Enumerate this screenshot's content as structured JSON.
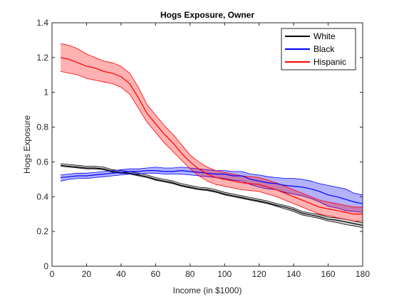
{
  "chart_data": {
    "type": "line",
    "title": "Hogs Exposure, Owner",
    "xlabel": "Income (in $1000)",
    "ylabel": "Hogs Exposure",
    "xlim": [
      0,
      180
    ],
    "ylim": [
      0,
      1.4
    ],
    "xticks": [
      0,
      20,
      40,
      60,
      80,
      100,
      120,
      140,
      160,
      180
    ],
    "yticks": [
      0,
      0.2,
      0.4,
      0.6,
      0.8,
      1,
      1.2,
      1.4
    ],
    "xtick_labels": [
      "0",
      "20",
      "40",
      "60",
      "80",
      "100",
      "120",
      "140",
      "160",
      "180"
    ],
    "ytick_labels": [
      "0",
      "0.2",
      "0.4",
      "0.6",
      "0.8",
      "1",
      "1.2",
      "1.4"
    ],
    "grid": false,
    "legend_position": "top-right",
    "series": [
      {
        "name": "White",
        "color": "#000000",
        "band_color": "#808080",
        "x": [
          5,
          10,
          15,
          20,
          25,
          30,
          35,
          40,
          45,
          50,
          55,
          60,
          65,
          70,
          75,
          80,
          85,
          90,
          95,
          100,
          105,
          110,
          115,
          120,
          125,
          130,
          135,
          140,
          145,
          150,
          155,
          160,
          165,
          170,
          175,
          180
        ],
        "y": [
          0.58,
          0.575,
          0.57,
          0.565,
          0.565,
          0.56,
          0.545,
          0.54,
          0.535,
          0.525,
          0.515,
          0.5,
          0.49,
          0.48,
          0.465,
          0.455,
          0.445,
          0.44,
          0.43,
          0.415,
          0.405,
          0.395,
          0.385,
          0.375,
          0.365,
          0.35,
          0.34,
          0.325,
          0.305,
          0.295,
          0.285,
          0.27,
          0.265,
          0.255,
          0.245,
          0.235
        ],
        "lower": [
          0.575,
          0.57,
          0.565,
          0.56,
          0.56,
          0.555,
          0.54,
          0.535,
          0.53,
          0.52,
          0.51,
          0.495,
          0.485,
          0.475,
          0.46,
          0.45,
          0.44,
          0.435,
          0.425,
          0.41,
          0.4,
          0.39,
          0.38,
          0.37,
          0.36,
          0.345,
          0.33,
          0.315,
          0.295,
          0.285,
          0.275,
          0.26,
          0.252,
          0.24,
          0.232,
          0.222
        ],
        "upper": [
          0.59,
          0.585,
          0.58,
          0.575,
          0.575,
          0.57,
          0.555,
          0.55,
          0.545,
          0.535,
          0.525,
          0.51,
          0.5,
          0.49,
          0.475,
          0.465,
          0.455,
          0.45,
          0.44,
          0.425,
          0.415,
          0.405,
          0.395,
          0.385,
          0.375,
          0.36,
          0.35,
          0.335,
          0.315,
          0.305,
          0.297,
          0.283,
          0.278,
          0.27,
          0.26,
          0.25
        ]
      },
      {
        "name": "Black",
        "color": "#0000ff",
        "band_color": "#0000ff",
        "x": [
          5,
          10,
          15,
          20,
          25,
          30,
          35,
          40,
          45,
          50,
          55,
          60,
          65,
          70,
          75,
          80,
          85,
          90,
          95,
          100,
          105,
          110,
          115,
          120,
          125,
          130,
          135,
          140,
          145,
          150,
          155,
          160,
          165,
          170,
          175,
          180
        ],
        "y": [
          0.51,
          0.515,
          0.52,
          0.52,
          0.525,
          0.53,
          0.535,
          0.54,
          0.545,
          0.545,
          0.55,
          0.55,
          0.545,
          0.545,
          0.55,
          0.545,
          0.54,
          0.535,
          0.53,
          0.53,
          0.52,
          0.52,
          0.5,
          0.49,
          0.48,
          0.475,
          0.465,
          0.46,
          0.455,
          0.445,
          0.43,
          0.41,
          0.4,
          0.385,
          0.37,
          0.36
        ],
        "lower": [
          0.49,
          0.5,
          0.505,
          0.505,
          0.51,
          0.515,
          0.52,
          0.525,
          0.53,
          0.53,
          0.535,
          0.535,
          0.53,
          0.53,
          0.53,
          0.525,
          0.52,
          0.515,
          0.51,
          0.505,
          0.495,
          0.49,
          0.47,
          0.455,
          0.445,
          0.44,
          0.425,
          0.415,
          0.405,
          0.39,
          0.37,
          0.345,
          0.335,
          0.32,
          0.315,
          0.31
        ],
        "upper": [
          0.525,
          0.53,
          0.535,
          0.535,
          0.54,
          0.545,
          0.55,
          0.555,
          0.56,
          0.56,
          0.565,
          0.57,
          0.565,
          0.565,
          0.57,
          0.565,
          0.56,
          0.555,
          0.55,
          0.55,
          0.545,
          0.545,
          0.53,
          0.525,
          0.515,
          0.51,
          0.505,
          0.505,
          0.5,
          0.49,
          0.475,
          0.465,
          0.455,
          0.445,
          0.42,
          0.41
        ]
      },
      {
        "name": "Hispanic",
        "color": "#ff0000",
        "band_color": "#ff0000",
        "x": [
          5,
          10,
          15,
          20,
          25,
          30,
          35,
          40,
          45,
          50,
          55,
          60,
          65,
          70,
          75,
          80,
          85,
          90,
          95,
          100,
          105,
          110,
          115,
          120,
          125,
          130,
          135,
          140,
          145,
          150,
          155,
          160,
          165,
          170,
          175,
          180
        ],
        "y": [
          1.2,
          1.19,
          1.17,
          1.15,
          1.14,
          1.12,
          1.11,
          1.09,
          1.05,
          0.97,
          0.88,
          0.82,
          0.76,
          0.71,
          0.65,
          0.6,
          0.56,
          0.53,
          0.51,
          0.5,
          0.49,
          0.48,
          0.475,
          0.47,
          0.455,
          0.44,
          0.42,
          0.4,
          0.38,
          0.36,
          0.34,
          0.33,
          0.32,
          0.31,
          0.3,
          0.3
        ],
        "lower": [
          1.12,
          1.11,
          1.1,
          1.08,
          1.07,
          1.06,
          1.05,
          1.03,
          0.99,
          0.91,
          0.83,
          0.77,
          0.71,
          0.66,
          0.61,
          0.56,
          0.52,
          0.49,
          0.47,
          0.46,
          0.45,
          0.44,
          0.435,
          0.43,
          0.415,
          0.4,
          0.38,
          0.36,
          0.34,
          0.32,
          0.3,
          0.29,
          0.28,
          0.27,
          0.26,
          0.26
        ],
        "upper": [
          1.28,
          1.27,
          1.25,
          1.22,
          1.2,
          1.18,
          1.17,
          1.15,
          1.11,
          1.03,
          0.93,
          0.87,
          0.81,
          0.76,
          0.7,
          0.64,
          0.6,
          0.57,
          0.55,
          0.54,
          0.53,
          0.52,
          0.515,
          0.51,
          0.495,
          0.48,
          0.46,
          0.44,
          0.42,
          0.4,
          0.38,
          0.37,
          0.36,
          0.35,
          0.34,
          0.34
        ]
      }
    ]
  }
}
